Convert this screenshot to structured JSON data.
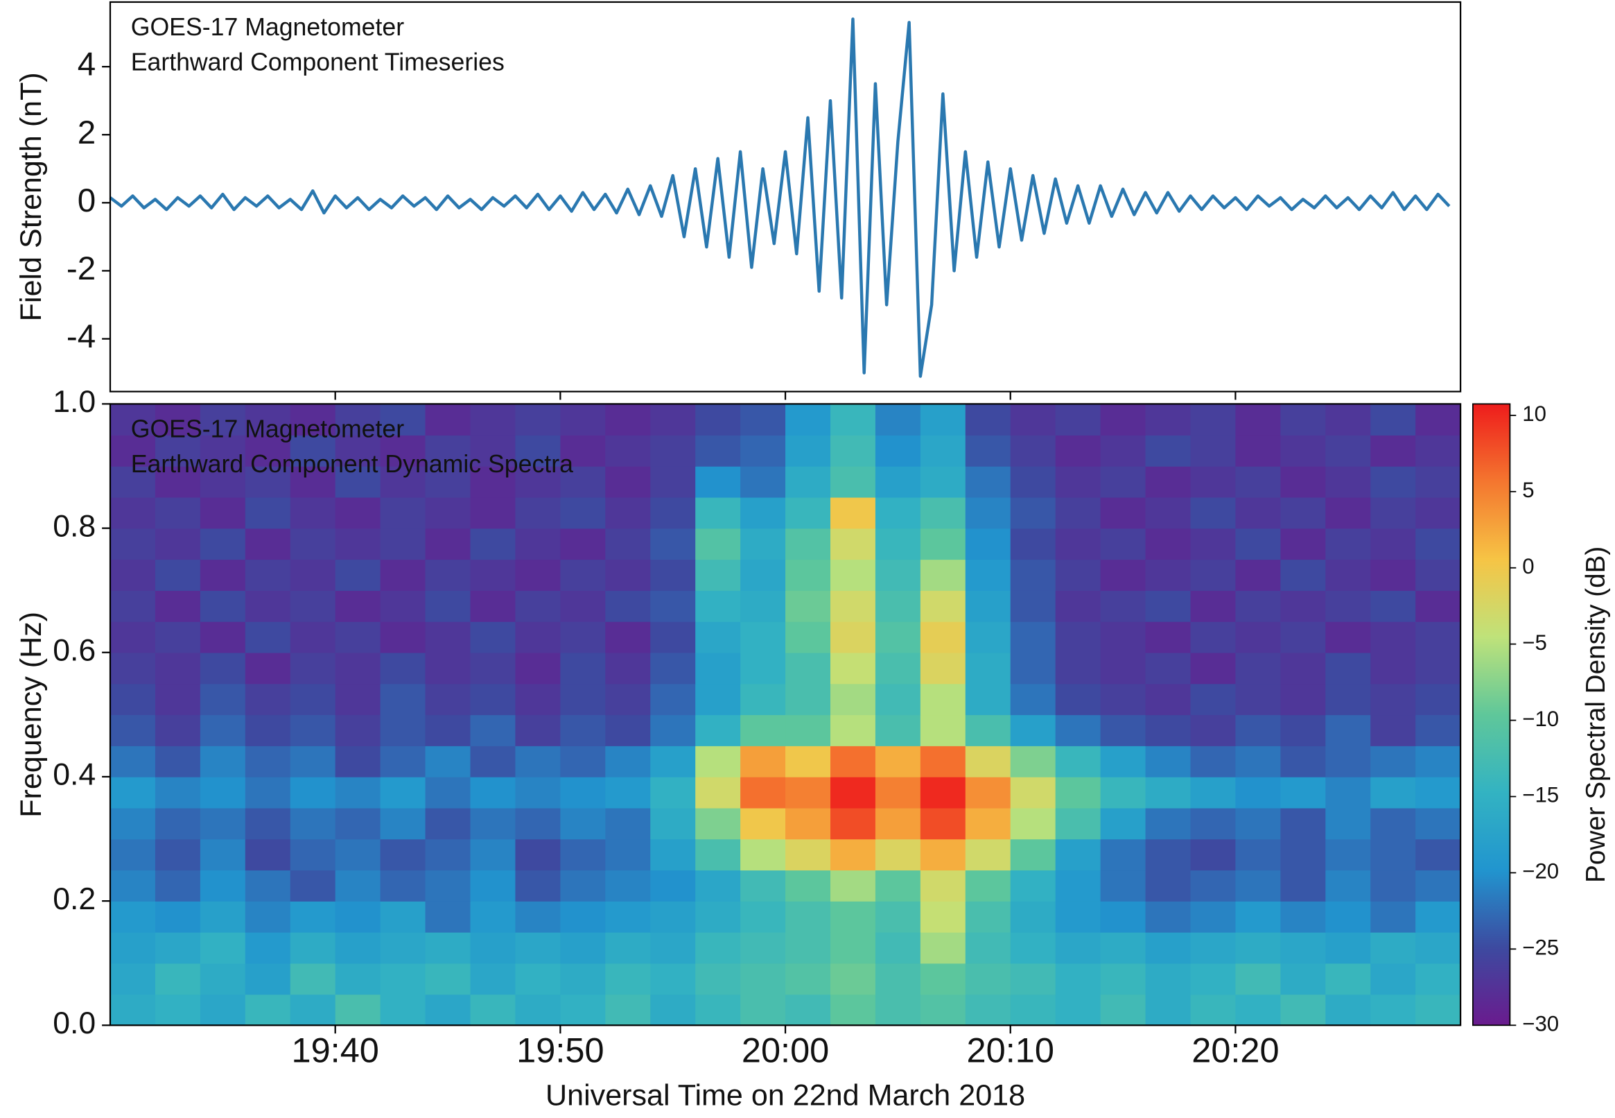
{
  "chart_data": [
    {
      "type": "line",
      "title": "GOES-17 Magnetometer",
      "subtitle": "Earthward Component Timeseries",
      "ylabel": "Field Strength (nT)",
      "color": "#2a78b0",
      "xlim": [
        "19:30",
        "20:30"
      ],
      "ylim": [
        -5.55,
        5.9
      ],
      "yticks": [
        -4,
        -2,
        0,
        2,
        4
      ],
      "x": [
        "19:30:00",
        "19:30:30",
        "19:31:00",
        "19:31:30",
        "19:32:00",
        "19:32:30",
        "19:33:00",
        "19:33:30",
        "19:34:00",
        "19:34:30",
        "19:35:00",
        "19:35:30",
        "19:36:00",
        "19:36:30",
        "19:37:00",
        "19:37:30",
        "19:38:00",
        "19:38:30",
        "19:39:00",
        "19:39:30",
        "19:40:00",
        "19:40:30",
        "19:41:00",
        "19:41:30",
        "19:42:00",
        "19:42:30",
        "19:43:00",
        "19:43:30",
        "19:44:00",
        "19:44:30",
        "19:45:00",
        "19:45:30",
        "19:46:00",
        "19:46:30",
        "19:47:00",
        "19:47:30",
        "19:48:00",
        "19:48:30",
        "19:49:00",
        "19:49:30",
        "19:50:00",
        "19:50:30",
        "19:51:00",
        "19:51:30",
        "19:52:00",
        "19:52:30",
        "19:53:00",
        "19:53:30",
        "19:54:00",
        "19:54:30",
        "19:55:00",
        "19:55:30",
        "19:56:00",
        "19:56:30",
        "19:57:00",
        "19:57:30",
        "19:58:00",
        "19:58:30",
        "19:59:00",
        "19:59:30",
        "20:00:00",
        "20:00:30",
        "20:01:00",
        "20:01:30",
        "20:02:00",
        "20:02:30",
        "20:03:00",
        "20:03:30",
        "20:04:00",
        "20:04:30",
        "20:05:00",
        "20:05:30",
        "20:06:00",
        "20:06:30",
        "20:07:00",
        "20:07:30",
        "20:08:00",
        "20:08:30",
        "20:09:00",
        "20:09:30",
        "20:10:00",
        "20:10:30",
        "20:11:00",
        "20:11:30",
        "20:12:00",
        "20:12:30",
        "20:13:00",
        "20:13:30",
        "20:14:00",
        "20:14:30",
        "20:15:00",
        "20:15:30",
        "20:16:00",
        "20:16:30",
        "20:17:00",
        "20:17:30",
        "20:18:00",
        "20:18:30",
        "20:19:00",
        "20:19:30",
        "20:20:00",
        "20:20:30",
        "20:21:00",
        "20:21:30",
        "20:22:00",
        "20:22:30",
        "20:23:00",
        "20:23:30",
        "20:24:00",
        "20:24:30",
        "20:25:00",
        "20:25:30",
        "20:26:00",
        "20:26:30",
        "20:27:00",
        "20:27:30",
        "20:28:00",
        "20:28:30",
        "20:29:00",
        "20:29:30"
      ],
      "values": [
        0.15,
        -0.1,
        0.2,
        -0.15,
        0.1,
        -0.2,
        0.15,
        -0.1,
        0.2,
        -0.15,
        0.25,
        -0.2,
        0.15,
        -0.1,
        0.2,
        -0.15,
        0.1,
        -0.2,
        0.35,
        -0.3,
        0.2,
        -0.15,
        0.15,
        -0.2,
        0.1,
        -0.15,
        0.2,
        -0.1,
        0.15,
        -0.2,
        0.2,
        -0.15,
        0.1,
        -0.2,
        0.15,
        -0.1,
        0.2,
        -0.15,
        0.25,
        -0.2,
        0.2,
        -0.25,
        0.3,
        -0.2,
        0.25,
        -0.3,
        0.4,
        -0.35,
        0.5,
        -0.4,
        0.8,
        -1.0,
        1.0,
        -1.3,
        1.3,
        -1.6,
        1.5,
        -1.9,
        1.0,
        -1.2,
        1.5,
        -1.5,
        2.5,
        -2.6,
        3.0,
        -2.8,
        5.4,
        -5.0,
        3.5,
        -3.0,
        1.8,
        5.3,
        -5.1,
        -3.0,
        3.2,
        -2.0,
        1.5,
        -1.6,
        1.2,
        -1.3,
        1.0,
        -1.1,
        0.8,
        -0.9,
        0.7,
        -0.6,
        0.5,
        -0.6,
        0.5,
        -0.4,
        0.4,
        -0.35,
        0.3,
        -0.3,
        0.3,
        -0.25,
        0.2,
        -0.2,
        0.2,
        -0.15,
        0.15,
        -0.2,
        0.2,
        -0.1,
        0.15,
        -0.2,
        0.1,
        -0.15,
        0.2,
        -0.15,
        0.15,
        -0.2,
        0.2,
        -0.15,
        0.3,
        -0.2,
        0.2,
        -0.2,
        0.25,
        -0.1
      ]
    },
    {
      "type": "heatmap",
      "title": "GOES-17 Magnetometer",
      "subtitle": "Earthward Component Dynamic Spectra",
      "xlabel": "Universal Time on 22nd March 2018",
      "ylabel": "Frequency (Hz)",
      "xlim": [
        "19:30",
        "20:30"
      ],
      "xticks": [
        "19:40",
        "19:50",
        "20:00",
        "20:10",
        "20:20"
      ],
      "ylim": [
        0,
        1
      ],
      "yticks": [
        {
          "value": 0,
          "label": "0.0"
        },
        0.2,
        0.4,
        0.6,
        0.8,
        {
          "value": 1,
          "label": "1.0"
        }
      ],
      "x": [
        "19:30",
        "19:32",
        "19:34",
        "19:36",
        "19:38",
        "19:40",
        "19:42",
        "19:44",
        "19:46",
        "19:48",
        "19:50",
        "19:52",
        "19:54",
        "19:56",
        "19:58",
        "20:00",
        "20:02",
        "20:04",
        "20:06",
        "20:08",
        "20:10",
        "20:12",
        "20:14",
        "20:16",
        "20:18",
        "20:20",
        "20:22",
        "20:24",
        "20:26",
        "20:28"
      ],
      "y": [
        0,
        0.05,
        0.1,
        0.15,
        0.2,
        0.25,
        0.3,
        0.35,
        0.4,
        0.45,
        0.5,
        0.55,
        0.6,
        0.65,
        0.7,
        0.75,
        0.8,
        0.85,
        0.9,
        0.95
      ],
      "z": [
        [
          -16,
          -15,
          -17,
          -14,
          -16,
          -12,
          -15,
          -17,
          -14,
          -16,
          -15,
          -13,
          -16,
          -14,
          -12,
          -13,
          -10,
          -12,
          -11,
          -13,
          -14,
          -15,
          -13,
          -16,
          -14,
          -15,
          -13,
          -16,
          -15,
          -14
        ],
        [
          -17,
          -14,
          -16,
          -18,
          -13,
          -16,
          -15,
          -14,
          -17,
          -15,
          -16,
          -14,
          -15,
          -13,
          -12,
          -11,
          -9,
          -12,
          -10,
          -12,
          -13,
          -15,
          -14,
          -16,
          -15,
          -13,
          -16,
          -14,
          -17,
          -15
        ],
        [
          -18,
          -17,
          -15,
          -19,
          -16,
          -18,
          -17,
          -16,
          -18,
          -17,
          -18,
          -16,
          -17,
          -14,
          -13,
          -12,
          -10,
          -13,
          -6,
          -13,
          -15,
          -17,
          -16,
          -18,
          -17,
          -16,
          -17,
          -18,
          -16,
          -17
        ],
        [
          -19,
          -20,
          -18,
          -21,
          -19,
          -20,
          -18,
          -22,
          -19,
          -21,
          -20,
          -19,
          -18,
          -16,
          -14,
          -12,
          -10,
          -12,
          -4,
          -12,
          -16,
          -19,
          -20,
          -22,
          -21,
          -19,
          -21,
          -20,
          -22,
          -19
        ],
        [
          -21,
          -23,
          -20,
          -22,
          -24,
          -21,
          -23,
          -22,
          -20,
          -24,
          -22,
          -21,
          -20,
          -17,
          -13,
          -10,
          -6,
          -10,
          -3,
          -10,
          -15,
          -19,
          -22,
          -24,
          -23,
          -22,
          -24,
          -21,
          -23,
          -22
        ],
        [
          -22,
          -24,
          -21,
          -25,
          -23,
          -22,
          -24,
          -23,
          -21,
          -25,
          -23,
          -22,
          -18,
          -12,
          -5,
          -2,
          2,
          -2,
          2,
          -3,
          -10,
          -18,
          -22,
          -24,
          -25,
          -23,
          -24,
          -22,
          -23,
          -24
        ],
        [
          -21,
          -23,
          -22,
          -24,
          -22,
          -23,
          -21,
          -24,
          -22,
          -23,
          -21,
          -22,
          -16,
          -8,
          0,
          3,
          8,
          3,
          8,
          2,
          -5,
          -12,
          -18,
          -22,
          -23,
          -22,
          -24,
          -21,
          -23,
          -22
        ],
        [
          -19,
          -21,
          -20,
          -22,
          -20,
          -21,
          -19,
          -22,
          -20,
          -21,
          -20,
          -19,
          -15,
          -3,
          6,
          5,
          10,
          5,
          10,
          4,
          -3,
          -10,
          -14,
          -16,
          -18,
          -20,
          -19,
          -21,
          -18,
          -19
        ],
        [
          -22,
          -24,
          -21,
          -23,
          -22,
          -25,
          -23,
          -21,
          -24,
          -22,
          -23,
          -21,
          -18,
          -5,
          3,
          0,
          6,
          2,
          6,
          -2,
          -8,
          -14,
          -18,
          -21,
          -23,
          -22,
          -24,
          -23,
          -22,
          -21
        ],
        [
          -24,
          -26,
          -23,
          -25,
          -24,
          -26,
          -24,
          -25,
          -23,
          -26,
          -24,
          -25,
          -22,
          -15,
          -10,
          -10,
          -5,
          -12,
          -5,
          -12,
          -18,
          -22,
          -24,
          -25,
          -26,
          -24,
          -25,
          -23,
          -26,
          -24
        ],
        [
          -25,
          -27,
          -24,
          -26,
          -25,
          -27,
          -24,
          -26,
          -25,
          -27,
          -25,
          -26,
          -23,
          -18,
          -14,
          -12,
          -6,
          -13,
          -5,
          -16,
          -22,
          -25,
          -26,
          -27,
          -25,
          -26,
          -27,
          -25,
          -26,
          -25
        ],
        [
          -26,
          -27,
          -25,
          -28,
          -26,
          -27,
          -25,
          -27,
          -26,
          -28,
          -25,
          -27,
          -24,
          -18,
          -15,
          -12,
          -4,
          -12,
          -2,
          -16,
          -23,
          -26,
          -27,
          -26,
          -28,
          -26,
          -27,
          -25,
          -27,
          -26
        ],
        [
          -27,
          -26,
          -28,
          -25,
          -27,
          -26,
          -28,
          -27,
          -25,
          -27,
          -26,
          -28,
          -25,
          -17,
          -15,
          -10,
          -2,
          -11,
          -1,
          -17,
          -23,
          -26,
          -27,
          -28,
          -26,
          -27,
          -26,
          -28,
          -27,
          -26
        ],
        [
          -26,
          -28,
          -25,
          -27,
          -26,
          -28,
          -27,
          -25,
          -28,
          -26,
          -27,
          -25,
          -24,
          -15,
          -16,
          -9,
          -3,
          -12,
          -3,
          -18,
          -24,
          -27,
          -26,
          -25,
          -28,
          -26,
          -27,
          -26,
          -25,
          -28
        ],
        [
          -27,
          -25,
          -28,
          -26,
          -27,
          -25,
          -28,
          -26,
          -27,
          -28,
          -26,
          -27,
          -25,
          -13,
          -17,
          -10,
          -5,
          -13,
          -6,
          -19,
          -24,
          -26,
          -28,
          -27,
          -26,
          -28,
          -25,
          -27,
          -28,
          -26
        ],
        [
          -26,
          -27,
          -25,
          -28,
          -26,
          -27,
          -26,
          -28,
          -25,
          -27,
          -28,
          -26,
          -24,
          -11,
          -16,
          -11,
          -3,
          -14,
          -10,
          -20,
          -25,
          -27,
          -26,
          -28,
          -27,
          -25,
          -28,
          -26,
          -27,
          -25
        ],
        [
          -27,
          -26,
          -28,
          -25,
          -27,
          -28,
          -26,
          -27,
          -28,
          -26,
          -25,
          -27,
          -25,
          -14,
          -18,
          -14,
          0,
          -15,
          -12,
          -21,
          -24,
          -26,
          -28,
          -27,
          -25,
          -27,
          -26,
          -28,
          -26,
          -27
        ],
        [
          -26,
          -28,
          -27,
          -26,
          -28,
          -25,
          -27,
          -26,
          -28,
          -27,
          -26,
          -28,
          -26,
          -20,
          -22,
          -16,
          -12,
          -18,
          -16,
          -22,
          -25,
          -27,
          -26,
          -28,
          -27,
          -26,
          -28,
          -27,
          -25,
          -26
        ],
        [
          -28,
          -26,
          -27,
          -28,
          -25,
          -27,
          -28,
          -26,
          -27,
          -25,
          -28,
          -27,
          -26,
          -24,
          -23,
          -18,
          -13,
          -20,
          -17,
          -24,
          -26,
          -28,
          -27,
          -25,
          -26,
          -28,
          -27,
          -26,
          -28,
          -27
        ],
        [
          -27,
          -28,
          -26,
          -27,
          -28,
          -26,
          -25,
          -28,
          -27,
          -26,
          -27,
          -28,
          -27,
          -25,
          -24,
          -19,
          -14,
          -21,
          -18,
          -25,
          -27,
          -26,
          -28,
          -27,
          -26,
          -28,
          -26,
          -27,
          -25,
          -28
        ]
      ],
      "colorbar": {
        "label": "Power Spectral Density (dB)",
        "lim": [
          -30,
          10.75
        ],
        "ticks": [
          {
            "value": -30,
            "label": "−30"
          },
          {
            "value": -25,
            "label": "−25"
          },
          {
            "value": -20,
            "label": "−20"
          },
          {
            "value": -15,
            "label": "−15"
          },
          {
            "value": -10,
            "label": "−10"
          },
          {
            "value": -5,
            "label": "−5"
          },
          0,
          5,
          10
        ],
        "colormap": [
          "#6a1b8e",
          "#3d4aa0",
          "#2195cf",
          "#33b3c2",
          "#5fc79a",
          "#bfe27a",
          "#f6c445",
          "#f4762f",
          "#ee1c1c"
        ]
      }
    }
  ]
}
